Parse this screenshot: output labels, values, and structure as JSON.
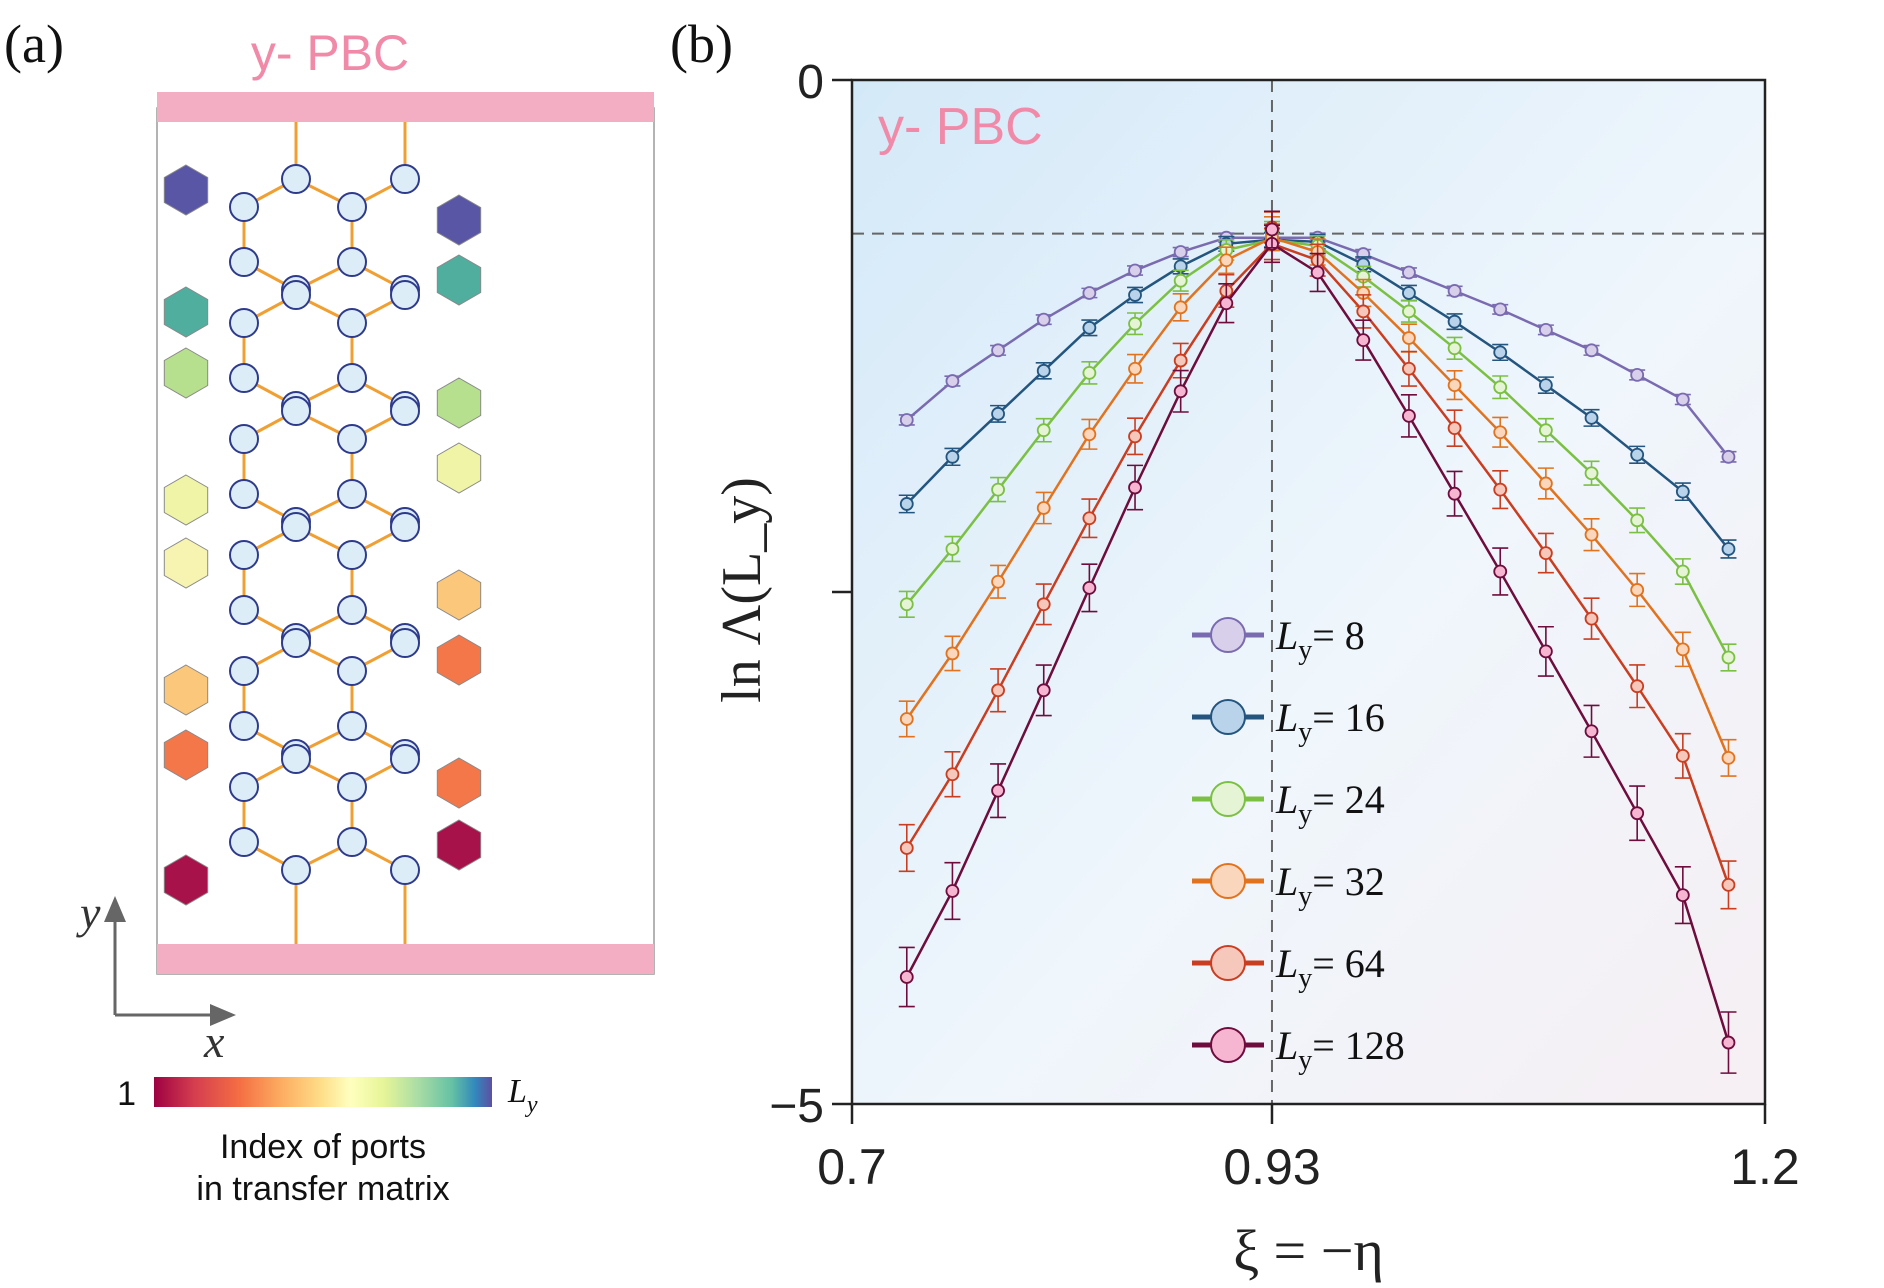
{
  "panel_a": {
    "label": "(a)",
    "pbc_label": "y- PBC",
    "axis_y": "y",
    "axis_x": "x",
    "colorbar": {
      "min_label": "1",
      "max_label": "L",
      "max_label_sub": "y",
      "caption_line1": "Index of ports",
      "caption_line2": "in transfer matrix"
    },
    "colors": {
      "pbc_bar": "#f4aec4",
      "bond": "#f0a033",
      "site_fill": "#dcedf8",
      "site_stroke": "#2e3a8c",
      "port_left": [
        "#5a56a6",
        "#4fae9e",
        "#b6df8e",
        "#eff4a6",
        "#f6f4b0",
        "#fbc77a",
        "#f4774a",
        "#a8124a"
      ],
      "port_right": [
        "#5a56a6",
        "#4fae9e",
        "#b6df8e",
        "#eff4a6",
        "#fbc77a",
        "#f4774a",
        "#f4774a",
        "#a8124a"
      ]
    }
  },
  "panel_b": {
    "label": "(b)",
    "pbc_label": "y- PBC"
  },
  "chart_data": {
    "type": "line",
    "title": "",
    "xlabel": "ξ = −η",
    "ylabel": "ln Λ(L_y)",
    "xlim": [
      0.7,
      1.2
    ],
    "ylim": [
      -5,
      0
    ],
    "xticks": [
      0.7,
      0.93,
      1.2
    ],
    "xtick_labels": [
      "0.7",
      "0.93",
      "1.2"
    ],
    "yticks": [
      0,
      -2.5,
      -5
    ],
    "ytick_labels": [
      "0",
      "",
      "−5"
    ],
    "ref_lines": {
      "x": 0.93,
      "y": -0.75
    },
    "legend_position": "center-right",
    "legend_prefix": "L",
    "legend_sub": "y",
    "x_left": [
      0.73,
      0.755,
      0.78,
      0.805,
      0.83,
      0.855,
      0.88,
      0.905,
      0.93
    ],
    "x_right": [
      0.93,
      0.955,
      0.98,
      1.005,
      1.03,
      1.055,
      1.08,
      1.105,
      1.13,
      1.155,
      1.18
    ],
    "series": [
      {
        "name": "= 8",
        "color": "#7a6bb0",
        "fill": "#d8d0ea",
        "y_left": [
          -1.66,
          -1.47,
          -1.32,
          -1.17,
          -1.04,
          -0.93,
          -0.84,
          -0.77,
          -0.77
        ],
        "y_right": [
          -0.75,
          -0.77,
          -0.85,
          -0.94,
          -1.03,
          -1.12,
          -1.22,
          -1.32,
          -1.44,
          -1.56,
          -1.84
        ]
      },
      {
        "name": "= 16",
        "color": "#23557f",
        "fill": "#b9d3ea",
        "y_left": [
          -2.07,
          -1.84,
          -1.63,
          -1.42,
          -1.21,
          -1.05,
          -0.91,
          -0.8,
          -0.78
        ],
        "y_right": [
          -0.74,
          -0.79,
          -0.9,
          -1.04,
          -1.18,
          -1.33,
          -1.49,
          -1.65,
          -1.83,
          -2.01,
          -2.29
        ]
      },
      {
        "name": "= 24",
        "color": "#7cc043",
        "fill": "#e6f4d6",
        "y_left": [
          -2.56,
          -2.29,
          -2.0,
          -1.71,
          -1.43,
          -1.19,
          -0.98,
          -0.83,
          -0.78
        ],
        "y_right": [
          -0.74,
          -0.81,
          -0.96,
          -1.13,
          -1.31,
          -1.5,
          -1.71,
          -1.92,
          -2.15,
          -2.4,
          -2.82
        ]
      },
      {
        "name": "= 32",
        "color": "#e1731f",
        "fill": "#fad7bc",
        "y_left": [
          -3.12,
          -2.8,
          -2.45,
          -2.09,
          -1.73,
          -1.41,
          -1.11,
          -0.88,
          -0.77
        ],
        "y_right": [
          -0.73,
          -0.84,
          -1.04,
          -1.26,
          -1.49,
          -1.72,
          -1.97,
          -2.22,
          -2.49,
          -2.78,
          -3.31
        ]
      },
      {
        "name": "= 64",
        "color": "#c93e20",
        "fill": "#f6c7bb",
        "y_left": [
          -3.75,
          -3.39,
          -2.98,
          -2.56,
          -2.14,
          -1.74,
          -1.37,
          -1.03,
          -0.8
        ],
        "y_right": [
          -0.72,
          -0.88,
          -1.13,
          -1.41,
          -1.7,
          -2.0,
          -2.31,
          -2.63,
          -2.96,
          -3.3,
          -3.93
        ]
      },
      {
        "name": "= 128",
        "color": "#6e0d3d",
        "fill": "#f6b6d2",
        "y_left": [
          -4.38,
          -3.96,
          -3.47,
          -2.98,
          -2.48,
          -1.99,
          -1.52,
          -1.09,
          -0.8
        ],
        "y_right": [
          -0.73,
          -0.94,
          -1.27,
          -1.64,
          -2.02,
          -2.4,
          -2.79,
          -3.18,
          -3.58,
          -3.98,
          -4.7
        ]
      }
    ]
  }
}
